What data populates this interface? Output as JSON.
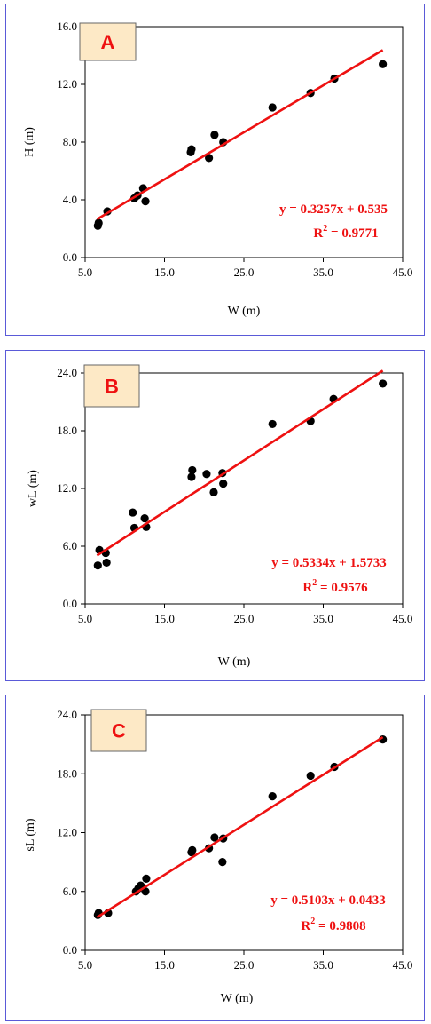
{
  "colors": {
    "panel_border": "#5a5ad8",
    "fit_line": "#ee1111",
    "points": "#000000",
    "badge_fill": "#fde9c6",
    "badge_border": "#666666"
  },
  "chart_data": [
    {
      "type": "scatter",
      "panel_label": "A",
      "xlabel": "W (m)",
      "ylabel": "H (m)",
      "xlim": [
        5,
        45
      ],
      "ylim": [
        0,
        16
      ],
      "xticks": [
        "5.0",
        "15.0",
        "25.0",
        "35.0",
        "45.0"
      ],
      "yticks": [
        "0.0",
        "4.0",
        "8.0",
        "12.0",
        "16.0"
      ],
      "grid": false,
      "points": [
        {
          "x": 6.6,
          "y": 2.2
        },
        {
          "x": 6.7,
          "y": 2.4
        },
        {
          "x": 7.8,
          "y": 3.2
        },
        {
          "x": 11.2,
          "y": 4.1
        },
        {
          "x": 11.6,
          "y": 4.3
        },
        {
          "x": 12.3,
          "y": 4.8
        },
        {
          "x": 12.6,
          "y": 3.9
        },
        {
          "x": 18.3,
          "y": 7.3
        },
        {
          "x": 18.4,
          "y": 7.5
        },
        {
          "x": 20.6,
          "y": 6.9
        },
        {
          "x": 21.3,
          "y": 8.5
        },
        {
          "x": 22.4,
          "y": 8.0
        },
        {
          "x": 28.6,
          "y": 10.4
        },
        {
          "x": 33.4,
          "y": 11.4
        },
        {
          "x": 36.4,
          "y": 12.4
        },
        {
          "x": 42.5,
          "y": 13.4
        }
      ],
      "trendline": {
        "slope": 0.3257,
        "intercept": 0.535,
        "x_range": [
          6.5,
          42.5
        ]
      },
      "equation": "y = 0.3257x + 0.535",
      "r2_prefix": "R",
      "r2_value": " = 0.9771"
    },
    {
      "type": "scatter",
      "panel_label": "B",
      "xlabel": "W (m)",
      "ylabel": "wL (m)",
      "xlim": [
        5,
        45
      ],
      "ylim": [
        0,
        24
      ],
      "xticks": [
        "5.0",
        "15.0",
        "25.0",
        "35.0",
        "45.0"
      ],
      "yticks": [
        "0.0",
        "6.0",
        "12.0",
        "18.0",
        "24.0"
      ],
      "grid": false,
      "points": [
        {
          "x": 6.6,
          "y": 4.0
        },
        {
          "x": 6.8,
          "y": 5.6
        },
        {
          "x": 7.6,
          "y": 5.3
        },
        {
          "x": 7.7,
          "y": 4.3
        },
        {
          "x": 11.0,
          "y": 9.5
        },
        {
          "x": 11.2,
          "y": 7.9
        },
        {
          "x": 12.5,
          "y": 8.9
        },
        {
          "x": 12.7,
          "y": 8.0
        },
        {
          "x": 18.4,
          "y": 13.2
        },
        {
          "x": 18.5,
          "y": 13.9
        },
        {
          "x": 20.3,
          "y": 13.5
        },
        {
          "x": 21.2,
          "y": 11.6
        },
        {
          "x": 22.3,
          "y": 13.6
        },
        {
          "x": 22.4,
          "y": 12.5
        },
        {
          "x": 28.6,
          "y": 18.7
        },
        {
          "x": 33.4,
          "y": 19.0
        },
        {
          "x": 36.3,
          "y": 21.3
        },
        {
          "x": 42.5,
          "y": 22.9
        }
      ],
      "trendline": {
        "slope": 0.5334,
        "intercept": 1.5733,
        "x_range": [
          6.5,
          42.5
        ]
      },
      "equation": "y = 0.5334x + 1.5733",
      "r2_prefix": "R",
      "r2_value": " = 0.9576"
    },
    {
      "type": "scatter",
      "panel_label": "C",
      "xlabel": "W (m)",
      "ylabel": "sL (m)",
      "xlim": [
        5,
        45
      ],
      "ylim": [
        0,
        24
      ],
      "xticks": [
        "5.0",
        "15.0",
        "25.0",
        "35.0",
        "45.0"
      ],
      "yticks": [
        "0.0",
        "6.0",
        "12.0",
        "18.0",
        "24.0"
      ],
      "grid": false,
      "points": [
        {
          "x": 6.6,
          "y": 3.6
        },
        {
          "x": 6.7,
          "y": 3.8
        },
        {
          "x": 7.9,
          "y": 3.8
        },
        {
          "x": 11.4,
          "y": 6.0
        },
        {
          "x": 11.7,
          "y": 6.3
        },
        {
          "x": 12.0,
          "y": 6.6
        },
        {
          "x": 12.6,
          "y": 6.0
        },
        {
          "x": 12.7,
          "y": 7.3
        },
        {
          "x": 18.4,
          "y": 10.0
        },
        {
          "x": 18.5,
          "y": 10.2
        },
        {
          "x": 20.6,
          "y": 10.4
        },
        {
          "x": 21.3,
          "y": 11.5
        },
        {
          "x": 22.3,
          "y": 9.0
        },
        {
          "x": 22.4,
          "y": 11.4
        },
        {
          "x": 28.6,
          "y": 15.7
        },
        {
          "x": 33.4,
          "y": 17.8
        },
        {
          "x": 36.4,
          "y": 18.7
        },
        {
          "x": 42.5,
          "y": 21.5
        }
      ],
      "trendline": {
        "slope": 0.5103,
        "intercept": 0.0433,
        "x_range": [
          6.5,
          42.5
        ]
      },
      "equation": "y = 0.5103x + 0.0433",
      "r2_prefix": "R",
      "r2_value": " = 0.9808"
    }
  ]
}
